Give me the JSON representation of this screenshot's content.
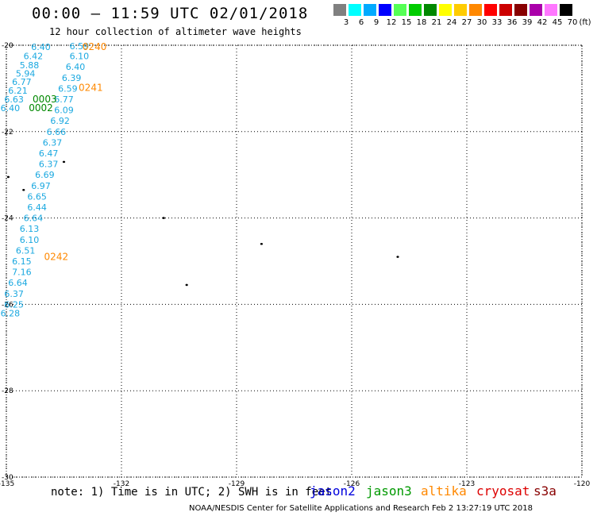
{
  "title": "00:00 – 11:59 UTC 02/01/2018",
  "subtitle": "12 hour collection of altimeter wave heights",
  "legend": {
    "unit": "(ft)",
    "bins": [
      {
        "label": "3",
        "color": "#808080"
      },
      {
        "label": "6",
        "color": "#00ffff"
      },
      {
        "label": "9",
        "color": "#00aaff"
      },
      {
        "label": "12",
        "color": "#0000ff"
      },
      {
        "label": "15",
        "color": "#55ff55"
      },
      {
        "label": "18",
        "color": "#00cc00"
      },
      {
        "label": "21",
        "color": "#008800"
      },
      {
        "label": "24",
        "color": "#ffff00"
      },
      {
        "label": "27",
        "color": "#ffcc00"
      },
      {
        "label": "30",
        "color": "#ff8800"
      },
      {
        "label": "33",
        "color": "#ff0000"
      },
      {
        "label": "36",
        "color": "#cc0000"
      },
      {
        "label": "39",
        "color": "#880000"
      },
      {
        "label": "42",
        "color": "#aa00aa"
      },
      {
        "label": "45",
        "color": "#ff77ff"
      },
      {
        "label": "70",
        "color": "#000000"
      }
    ]
  },
  "map": {
    "lon_range": [
      -135,
      -120
    ],
    "lat_range": [
      -30,
      -20
    ],
    "lon_ticks": [
      "-135",
      "-132",
      "-129",
      "-126",
      "-123",
      "-120"
    ],
    "lat_ticks": [
      "-20",
      "-22",
      "-24",
      "-26",
      "-28",
      "-30"
    ],
    "grid": "dotted"
  },
  "observations": [
    {
      "lon": -133.1,
      "lat": -20.02,
      "label": "6.59"
    },
    {
      "lon": -134.1,
      "lat": -20.04,
      "label": "6.40"
    },
    {
      "lon": -133.1,
      "lat": -20.25,
      "label": "6.10"
    },
    {
      "lon": -134.3,
      "lat": -20.25,
      "label": "6.42"
    },
    {
      "lon": -134.4,
      "lat": -20.46,
      "label": "5.88"
    },
    {
      "lon": -133.2,
      "lat": -20.5,
      "label": "6.40"
    },
    {
      "lon": -134.5,
      "lat": -20.65,
      "label": "5.94"
    },
    {
      "lon": -133.3,
      "lat": -20.75,
      "label": "6.39"
    },
    {
      "lon": -134.6,
      "lat": -20.85,
      "label": "6.77"
    },
    {
      "lon": -133.4,
      "lat": -21.0,
      "label": "6.59"
    },
    {
      "lon": -134.7,
      "lat": -21.05,
      "label": "6.21"
    },
    {
      "lon": -134.8,
      "lat": -21.25,
      "label": "6.63"
    },
    {
      "lon": -133.5,
      "lat": -21.25,
      "label": "6.77"
    },
    {
      "lon": -134.9,
      "lat": -21.45,
      "label": "6.40"
    },
    {
      "lon": -133.5,
      "lat": -21.5,
      "label": "6.09"
    },
    {
      "lon": -133.6,
      "lat": -21.75,
      "label": "6.92"
    },
    {
      "lon": -133.7,
      "lat": -22.0,
      "label": "6.66"
    },
    {
      "lon": -133.8,
      "lat": -22.25,
      "label": "6.37"
    },
    {
      "lon": -133.9,
      "lat": -22.5,
      "label": "6.47"
    },
    {
      "lon": -133.9,
      "lat": -22.75,
      "label": "6.37"
    },
    {
      "lon": -134.0,
      "lat": -23.0,
      "label": "6.69"
    },
    {
      "lon": -134.1,
      "lat": -23.25,
      "label": "6.97"
    },
    {
      "lon": -134.2,
      "lat": -23.5,
      "label": "6.65"
    },
    {
      "lon": -134.2,
      "lat": -23.75,
      "label": "6.44"
    },
    {
      "lon": -134.3,
      "lat": -24.0,
      "label": "6.64"
    },
    {
      "lon": -134.4,
      "lat": -24.25,
      "label": "6.13"
    },
    {
      "lon": -134.4,
      "lat": -24.5,
      "label": "6.10"
    },
    {
      "lon": -134.5,
      "lat": -24.75,
      "label": "6.51"
    },
    {
      "lon": -134.6,
      "lat": -25.0,
      "label": "6.15"
    },
    {
      "lon": -134.6,
      "lat": -25.25,
      "label": "7.16"
    },
    {
      "lon": -134.7,
      "lat": -25.5,
      "label": "6.64"
    },
    {
      "lon": -134.8,
      "lat": -25.75,
      "label": "6.37"
    },
    {
      "lon": -134.8,
      "lat": -26.0,
      "label": "6.25"
    },
    {
      "lon": -134.9,
      "lat": -26.2,
      "label": "6.28"
    }
  ],
  "pass_times": [
    {
      "lon": -132.7,
      "lat": -20.04,
      "label": "0240",
      "color": "#ff8800"
    },
    {
      "lon": -132.8,
      "lat": -20.98,
      "label": "0241",
      "color": "#ff8800"
    },
    {
      "lon": -134.0,
      "lat": -21.25,
      "label": "0003",
      "color": "#008800"
    },
    {
      "lon": -134.1,
      "lat": -21.45,
      "label": "0002",
      "color": "#008800"
    },
    {
      "lon": -133.7,
      "lat": -24.9,
      "label": "0242",
      "color": "#ff8800"
    }
  ],
  "islands": [
    {
      "lon": -134.95,
      "lat": -23.05
    },
    {
      "lon": -134.55,
      "lat": -23.35
    },
    {
      "lon": -133.5,
      "lat": -22.7
    },
    {
      "lon": -130.9,
      "lat": -24.0
    },
    {
      "lon": -130.3,
      "lat": -25.55
    },
    {
      "lon": -128.35,
      "lat": -24.6
    },
    {
      "lon": -124.8,
      "lat": -24.9
    }
  ],
  "note": "note: 1) Time is in UTC; 2) SWH is in feet",
  "satellites": [
    {
      "name": "jason2",
      "color": "#0000dd"
    },
    {
      "name": "jason3",
      "color": "#009900"
    },
    {
      "name": "altika",
      "color": "#ff8800"
    },
    {
      "name": "cryosat",
      "color": "#dd0000"
    },
    {
      "name": "s3a",
      "color": "#880000"
    }
  ],
  "credit": "NOAA/NESDIS Center for Satellite Applications and Research    Feb  2 13:27:19 UTC 2018"
}
